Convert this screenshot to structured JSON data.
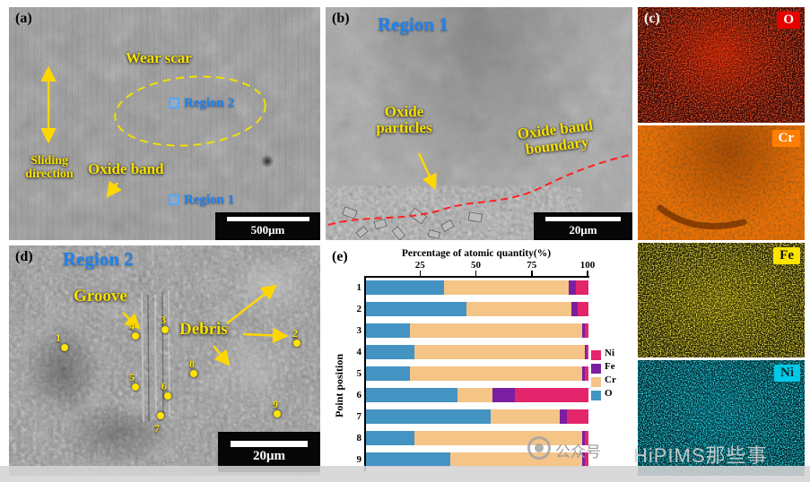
{
  "figure": {
    "background": "#ffffff",
    "colors": {
      "annotation_yellow": "#f8e000",
      "annotation_blue": "#1e82f0"
    },
    "watermark": {
      "account_text": "公众号",
      "brand_text": "HiPIMS那些事"
    }
  },
  "panels": {
    "a": {
      "tag": "(a)",
      "wear_scar_label": "Wear scar",
      "region2_label": "Region 2",
      "oxide_band_label": "Oxide band",
      "region1_label": "Region 1",
      "sliding": [
        "Sliding",
        "direction"
      ],
      "scale_text": "500μm"
    },
    "b": {
      "tag": "(b)",
      "region1_label": "Region 1",
      "oxide_particles": [
        "Oxide",
        "particles"
      ],
      "oxide_band_boundary": [
        "Oxide band",
        "boundary"
      ],
      "scale_text": "20μm"
    },
    "c": {
      "tag": "(c)",
      "maps": [
        {
          "element": "O",
          "box_color": "#e60000",
          "text_color": "#ffffff",
          "bg": "#1a0202"
        },
        {
          "element": "Cr",
          "box_color": "#ff7d00",
          "text_color": "#ffffff",
          "bg": "#e96e04"
        },
        {
          "element": "Fe",
          "box_color": "#ffe400",
          "text_color": "#111111",
          "bg": "#141102"
        },
        {
          "element": "Ni",
          "box_color": "#00c9e8",
          "text_color": "#06262c",
          "bg": "#02181e"
        }
      ]
    },
    "d": {
      "tag": "(d)",
      "region2_label": "Region 2",
      "groove_label": "Groove",
      "debris_label": "Debris",
      "scale_text": "20μm",
      "points": [
        {
          "n": "1",
          "dot": [
            62,
            114
          ],
          "label": [
            52,
            96
          ]
        },
        {
          "n": "2",
          "dot": [
            321,
            109
          ],
          "label": [
            316,
            91
          ]
        },
        {
          "n": "3",
          "dot": [
            174,
            94
          ],
          "label": [
            169,
            76
          ]
        },
        {
          "n": "4",
          "dot": [
            141,
            101
          ],
          "label": [
            134,
            83
          ]
        },
        {
          "n": "5",
          "dot": [
            141,
            158
          ],
          "label": [
            134,
            140
          ]
        },
        {
          "n": "6",
          "dot": [
            177,
            168
          ],
          "label": [
            170,
            150
          ]
        },
        {
          "n": "7",
          "dot": [
            169,
            190
          ],
          "label": [
            162,
            197
          ]
        },
        {
          "n": "8",
          "dot": [
            206,
            143
          ],
          "label": [
            201,
            125
          ]
        },
        {
          "n": "9",
          "dot": [
            299,
            188
          ],
          "label": [
            294,
            170
          ]
        }
      ]
    },
    "e": {
      "tag": "(e)"
    }
  },
  "chart_data": {
    "type": "stacked-bar-horizontal",
    "title": "Percentage of atomic quantity(%)",
    "xlabel": "Percentage of atomic quantity(%)",
    "ylabel": "Point position",
    "xlim": [
      0,
      100
    ],
    "x_ticks": [
      25,
      50,
      75,
      100
    ],
    "categories": [
      "1",
      "2",
      "3",
      "4",
      "5",
      "6",
      "7",
      "8",
      "9"
    ],
    "series": [
      {
        "name": "O",
        "color": "#4393c3",
        "values": [
          35,
          45,
          20,
          22,
          20,
          41,
          56,
          22,
          38
        ]
      },
      {
        "name": "Cr",
        "color": "#f5c487",
        "values": [
          56,
          47,
          77,
          76,
          77,
          16,
          31,
          75,
          59
        ]
      },
      {
        "name": "Fe",
        "color": "#7b1fa2",
        "values": [
          3,
          3,
          1,
          1,
          1,
          10,
          3,
          1,
          1
        ]
      },
      {
        "name": "Ni",
        "color": "#e3256b",
        "values": [
          6,
          5,
          2,
          1,
          2,
          33,
          10,
          2,
          2
        ]
      }
    ],
    "legend_order": [
      "Ni",
      "Fe",
      "Cr",
      "O"
    ],
    "legend_position": "right-middle",
    "grid": false
  }
}
